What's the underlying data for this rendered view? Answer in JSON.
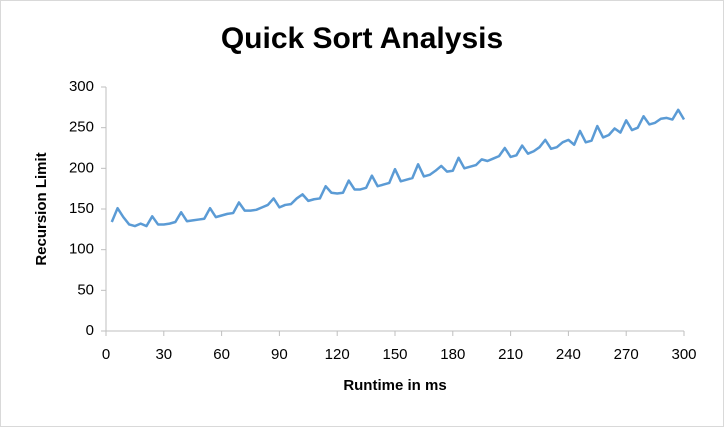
{
  "chart_data": {
    "type": "line",
    "title": "Quick Sort Analysis",
    "x_label": "Runtime in ms",
    "y_label": "Recursion Limit",
    "x": [
      3,
      6,
      9,
      12,
      15,
      18,
      21,
      24,
      27,
      30,
      33,
      36,
      39,
      42,
      45,
      48,
      51,
      54,
      57,
      60,
      63,
      66,
      69,
      72,
      75,
      78,
      81,
      84,
      87,
      90,
      93,
      96,
      99,
      102,
      105,
      108,
      111,
      114,
      117,
      120,
      123,
      126,
      129,
      132,
      135,
      138,
      141,
      144,
      147,
      150,
      153,
      156,
      159,
      162,
      165,
      168,
      171,
      174,
      177,
      180,
      183,
      186,
      189,
      192,
      195,
      198,
      201,
      204,
      207,
      210,
      213,
      216,
      219,
      222,
      225,
      228,
      231,
      234,
      237,
      240,
      243,
      246,
      249,
      252,
      255,
      258,
      261,
      264,
      267,
      270,
      273,
      276,
      279,
      282,
      285,
      288,
      291,
      294,
      297,
      300
    ],
    "series": [
      {
        "color": "#5b9bd5",
        "values": [
          134,
          151,
          140,
          131,
          129,
          132,
          129,
          141,
          131,
          131,
          132,
          134,
          146,
          135,
          136,
          137,
          138,
          151,
          140,
          142,
          144,
          145,
          158,
          148,
          148,
          149,
          152,
          155,
          163,
          152,
          155,
          156,
          163,
          168,
          160,
          162,
          163,
          178,
          170,
          169,
          170,
          185,
          174,
          174,
          176,
          191,
          178,
          180,
          182,
          199,
          184,
          186,
          188,
          205,
          190,
          192,
          197,
          203,
          196,
          197,
          213,
          200,
          202,
          204,
          211,
          209,
          212,
          215,
          225,
          214,
          216,
          228,
          218,
          221,
          226,
          235,
          224,
          226,
          232,
          235,
          229,
          246,
          232,
          234,
          252,
          238,
          241,
          249,
          244,
          259,
          247,
          250,
          264,
          254,
          256,
          261,
          262,
          260,
          272,
          260
        ]
      }
    ],
    "xlim": [
      0,
      300
    ],
    "xticks": [
      0,
      30,
      60,
      90,
      120,
      150,
      180,
      210,
      240,
      270,
      300
    ],
    "ylim": [
      0,
      300
    ],
    "yticks": [
      0,
      50,
      100,
      150,
      200,
      250,
      300
    ],
    "grid": false
  }
}
